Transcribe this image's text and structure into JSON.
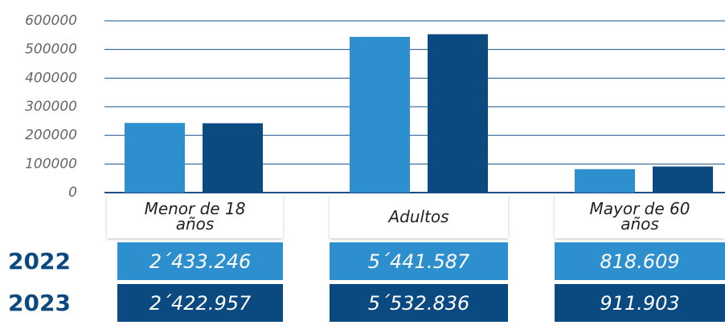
{
  "chart_data": {
    "type": "bar",
    "categories": [
      "Menor de 18 años",
      "Adultos",
      "Mayor de 60 años"
    ],
    "series": [
      {
        "name": "2022",
        "color": "#2e8fcf",
        "values": [
          243324.6,
          544158.7,
          81860.9
        ],
        "value_labels": [
          "2´433.246",
          "5´441.587",
          "818.609"
        ]
      },
      {
        "name": "2023",
        "color": "#0b4a80",
        "values": [
          242295.7,
          553283.6,
          91190.3
        ],
        "value_labels": [
          "2´422.957",
          "5´532.836",
          "911.903"
        ]
      }
    ],
    "ylim": [
      0,
      600000
    ],
    "yticks": [
      0,
      100000,
      200000,
      300000,
      400000,
      500000,
      600000
    ],
    "grid": true
  }
}
